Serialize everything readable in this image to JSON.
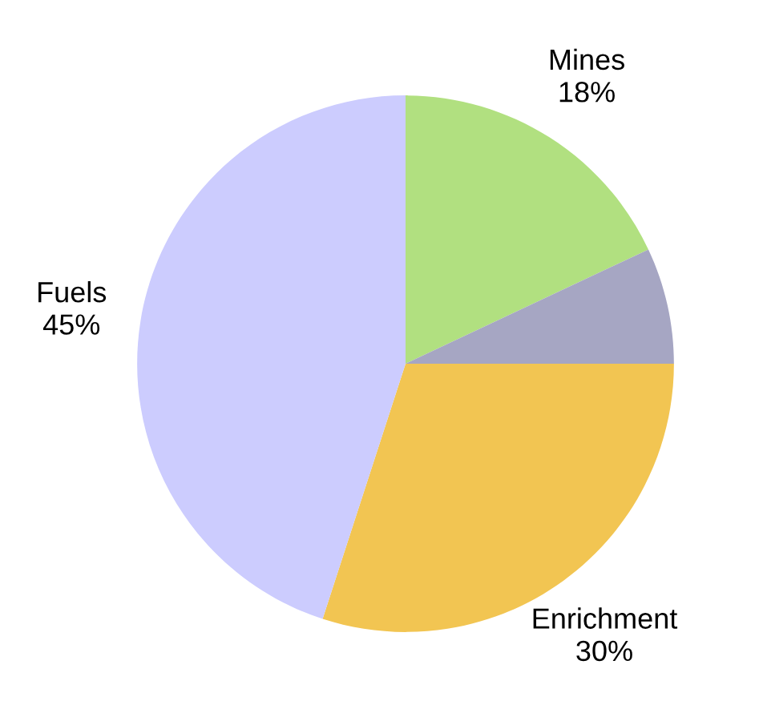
{
  "chart_data": {
    "type": "pie",
    "categories": [
      "Mines",
      null,
      "Enrichment",
      "Fuels"
    ],
    "values": [
      18,
      7,
      30,
      45
    ],
    "colors": [
      "#b1e080",
      "#a6a6c3",
      "#f2c552",
      "#ccccfe"
    ],
    "value_labels": [
      "18%",
      null,
      "30%",
      "45%"
    ]
  }
}
